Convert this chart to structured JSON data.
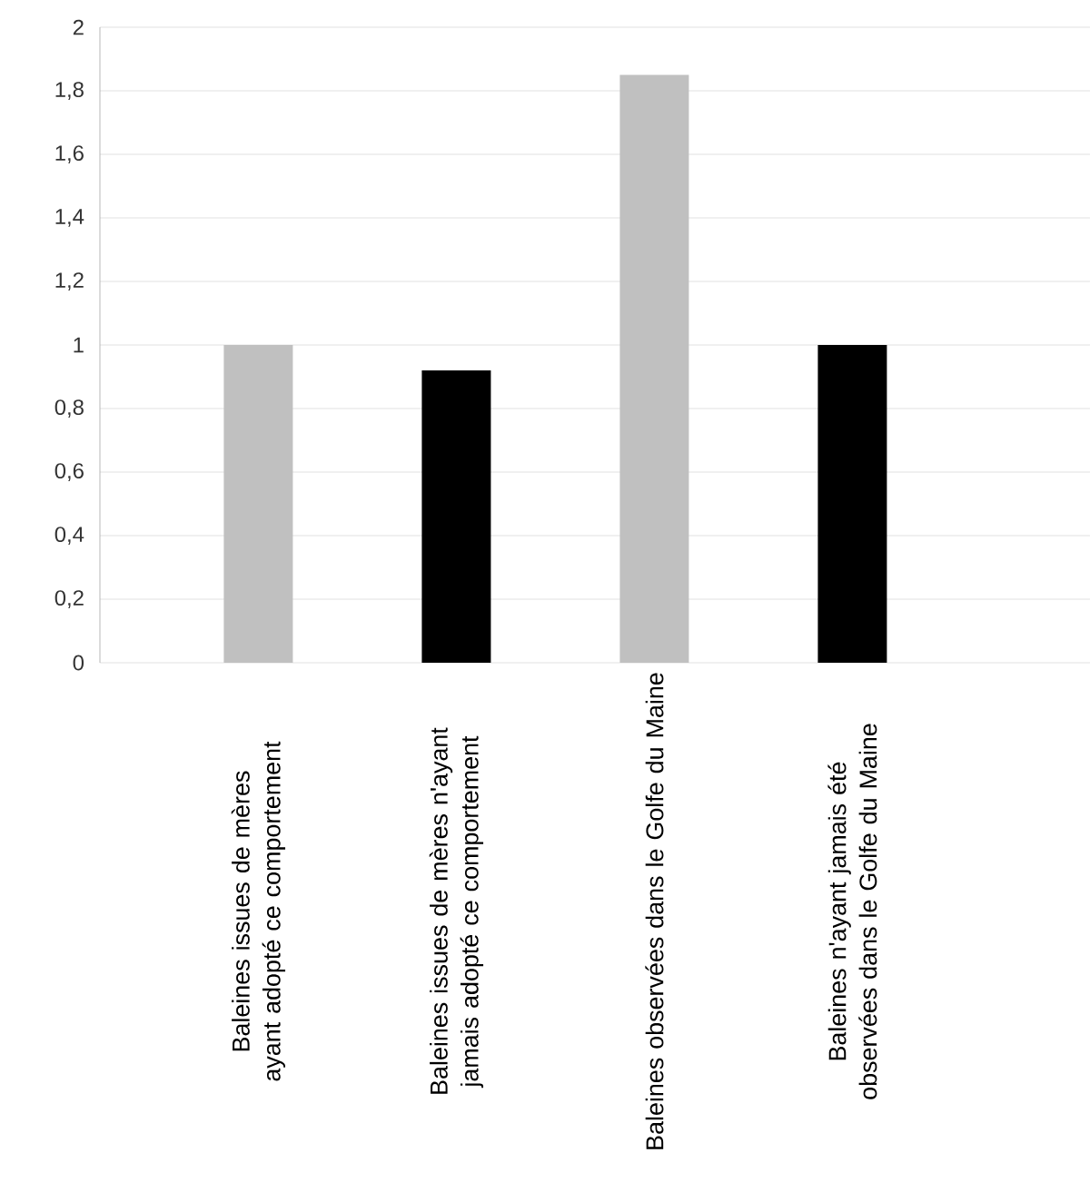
{
  "chart_data": {
    "type": "bar",
    "categories": [
      "Baleines issues de mères ayant adopté ce comportement",
      "Baleines issues de mères n'ayant jamais adopté ce comportement",
      "Baleines observées dans le Golfe du Maine",
      "Baleines n'ayant jamais été observées dans le Golfe du Maine"
    ],
    "values": [
      1,
      0.92,
      1.85,
      1
    ],
    "colors": [
      "#c0c0c0",
      "#000000",
      "#c0c0c0",
      "#000000"
    ],
    "ylim": [
      0,
      2
    ],
    "yticks": [
      0,
      {
        "value": 0.2,
        "label": "0,2"
      },
      {
        "value": 0.4,
        "label": "0,4"
      },
      {
        "value": 0.6,
        "label": "0,6"
      },
      {
        "value": 0.8,
        "label": "0,8"
      },
      1,
      {
        "value": 1.2,
        "label": "1,2"
      },
      {
        "value": 1.4,
        "label": "1,4"
      },
      {
        "value": 1.6,
        "label": "1,6"
      },
      {
        "value": 1.8,
        "label": "1,8"
      },
      2
    ],
    "grid": "y"
  }
}
